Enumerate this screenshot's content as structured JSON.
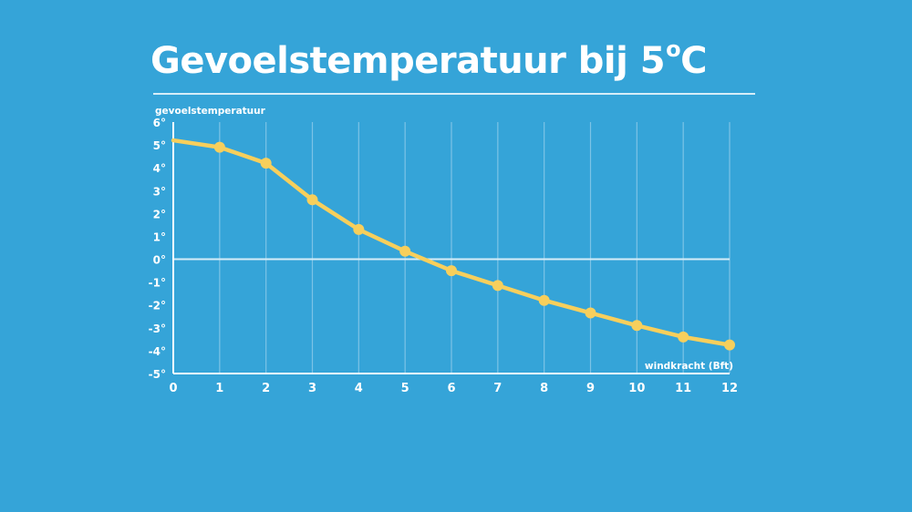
{
  "page": {
    "title_main": "Gevoelstemperatuur bij 5",
    "title_degree": "o",
    "title_unit": "C",
    "background": "#35a4d8"
  },
  "chart_data": {
    "type": "line",
    "title": "Gevoelstemperatuur bij 5°C",
    "xlabel": "windkracht (Bft)",
    "ylabel": "gevoelstemperatuur",
    "x": [
      0,
      1,
      2,
      3,
      4,
      5,
      6,
      7,
      8,
      9,
      10,
      11,
      12
    ],
    "x_tick_labels": [
      "0",
      "1",
      "2",
      "3",
      "4",
      "5",
      "6",
      "7",
      "8",
      "9",
      "10",
      "11",
      "12"
    ],
    "y_tick_labels": [
      "6°",
      "5°",
      "4°",
      "3°",
      "2°",
      "1°",
      "0°",
      "-1°",
      "-2°",
      "-3°",
      "-4°",
      "-5°"
    ],
    "y_ticks": [
      6,
      5,
      4,
      3,
      2,
      1,
      0,
      -1,
      -2,
      -3,
      -4,
      -5
    ],
    "xlim": [
      0,
      12
    ],
    "ylim": [
      -5,
      6
    ],
    "grid": "vertical",
    "series": [
      {
        "values": [
          5.2,
          4.9,
          4.2,
          2.6,
          1.3,
          0.35,
          -0.5,
          -1.15,
          -1.8,
          -2.35,
          -2.9,
          -3.4,
          -3.75
        ],
        "color": "#f7cf5c",
        "markers": [
          false,
          true,
          true,
          true,
          true,
          true,
          true,
          true,
          true,
          true,
          true,
          true,
          true
        ]
      }
    ],
    "colors": {
      "axis": "#ffffff",
      "grid": "#7cc3e6",
      "zero_line": "#d6edf8",
      "line": "#f7cf5c"
    }
  }
}
